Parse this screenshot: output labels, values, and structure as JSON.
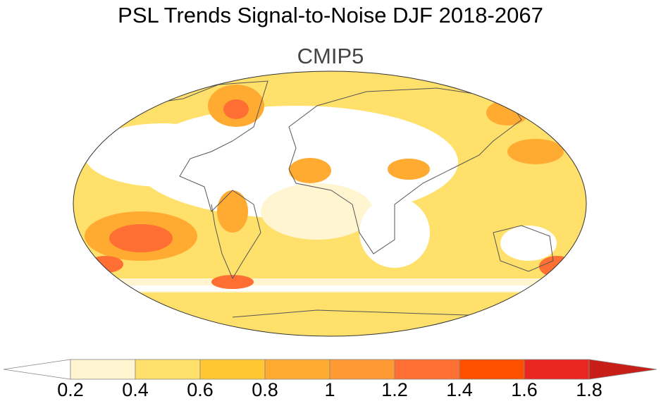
{
  "title": "PSL Trends Signal-to-Noise DJF 2018-2067",
  "subtitle": "CMIP5",
  "colorbar": {
    "levels": [
      "0.2",
      "0.4",
      "0.6",
      "0.8",
      "1",
      "1.2",
      "1.4",
      "1.6",
      "1.8"
    ],
    "colors": [
      "#ffffff",
      "#fff5d0",
      "#ffe06a",
      "#ffc832",
      "#ffab32",
      "#ff9932",
      "#ff6e32",
      "#ff5000",
      "#e82820",
      "#c81e18"
    ]
  }
}
